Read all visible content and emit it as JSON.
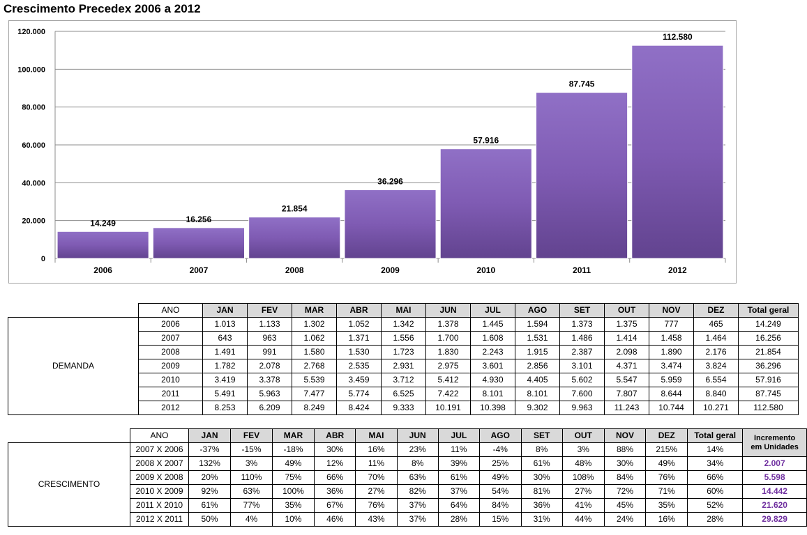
{
  "title": "Crescimento Precedex 2006 a 2012",
  "chart_data": {
    "type": "bar",
    "categories": [
      "2006",
      "2007",
      "2008",
      "2009",
      "2010",
      "2011",
      "2012"
    ],
    "values": [
      14249,
      16256,
      21854,
      36296,
      57916,
      87745,
      112580
    ],
    "value_labels": [
      "14.249",
      "16.256",
      "21.854",
      "36.296",
      "57.916",
      "87.745",
      "112.580"
    ],
    "ylim": [
      0,
      120000
    ],
    "yticks": [
      0,
      20000,
      40000,
      60000,
      80000,
      100000,
      120000
    ],
    "ytick_labels": [
      "0",
      "20.000",
      "40.000",
      "60.000",
      "80.000",
      "100.000",
      "120.000"
    ],
    "grid": true,
    "bar_color": "#7f5bb3"
  },
  "demanda": {
    "group_label": "DEMANDA",
    "headers": [
      "ANO",
      "JAN",
      "FEV",
      "MAR",
      "ABR",
      "MAI",
      "JUN",
      "JUL",
      "AGO",
      "SET",
      "OUT",
      "NOV",
      "DEZ",
      "Total geral"
    ],
    "rows": [
      [
        "2006",
        "1.013",
        "1.133",
        "1.302",
        "1.052",
        "1.342",
        "1.378",
        "1.445",
        "1.594",
        "1.373",
        "1.375",
        "777",
        "465",
        "14.249"
      ],
      [
        "2007",
        "643",
        "963",
        "1.062",
        "1.371",
        "1.556",
        "1.700",
        "1.608",
        "1.531",
        "1.486",
        "1.414",
        "1.458",
        "1.464",
        "16.256"
      ],
      [
        "2008",
        "1.491",
        "991",
        "1.580",
        "1.530",
        "1.723",
        "1.830",
        "2.243",
        "1.915",
        "2.387",
        "2.098",
        "1.890",
        "2.176",
        "21.854"
      ],
      [
        "2009",
        "1.782",
        "2.078",
        "2.768",
        "2.535",
        "2.931",
        "2.975",
        "3.601",
        "2.856",
        "3.101",
        "4.371",
        "3.474",
        "3.824",
        "36.296"
      ],
      [
        "2010",
        "3.419",
        "3.378",
        "5.539",
        "3.459",
        "3.712",
        "5.412",
        "4.930",
        "4.405",
        "5.602",
        "5.547",
        "5.959",
        "6.554",
        "57.916"
      ],
      [
        "2011",
        "5.491",
        "5.963",
        "7.477",
        "5.774",
        "6.525",
        "7.422",
        "8.101",
        "8.101",
        "7.600",
        "7.807",
        "8.644",
        "8.840",
        "87.745"
      ],
      [
        "2012",
        "8.253",
        "6.209",
        "8.249",
        "8.424",
        "9.333",
        "10.191",
        "10.398",
        "9.302",
        "9.963",
        "11.243",
        "10.744",
        "10.271",
        "112.580"
      ]
    ]
  },
  "crescimento": {
    "group_label": "CRESCIMENTO",
    "headers": [
      "ANO",
      "JAN",
      "FEV",
      "MAR",
      "ABR",
      "MAI",
      "JUN",
      "JUL",
      "AGO",
      "SET",
      "OUT",
      "NOV",
      "DEZ",
      "Total geral"
    ],
    "increment_header": [
      "Incremento",
      "em Unidades"
    ],
    "rows": [
      [
        "2007 X 2006",
        "-37%",
        "-15%",
        "-18%",
        "30%",
        "16%",
        "23%",
        "11%",
        "-4%",
        "8%",
        "3%",
        "88%",
        "215%",
        "14%"
      ],
      [
        "2008 X 2007",
        "132%",
        "3%",
        "49%",
        "12%",
        "11%",
        "8%",
        "39%",
        "25%",
        "61%",
        "48%",
        "30%",
        "49%",
        "34%"
      ],
      [
        "2009 X 2008",
        "20%",
        "110%",
        "75%",
        "66%",
        "70%",
        "63%",
        "61%",
        "49%",
        "30%",
        "108%",
        "84%",
        "76%",
        "66%"
      ],
      [
        "2010 X 2009",
        "92%",
        "63%",
        "100%",
        "36%",
        "27%",
        "82%",
        "37%",
        "54%",
        "81%",
        "27%",
        "72%",
        "71%",
        "60%"
      ],
      [
        "2011 X 2010",
        "61%",
        "77%",
        "35%",
        "67%",
        "76%",
        "37%",
        "64%",
        "84%",
        "36%",
        "41%",
        "45%",
        "35%",
        "52%"
      ],
      [
        "2012 X 2011",
        "50%",
        "4%",
        "10%",
        "46%",
        "43%",
        "37%",
        "28%",
        "15%",
        "31%",
        "44%",
        "24%",
        "16%",
        "28%"
      ]
    ],
    "increments": [
      "",
      "2.007",
      "5.598",
      "14.442",
      "21.620",
      "29.829"
    ]
  }
}
